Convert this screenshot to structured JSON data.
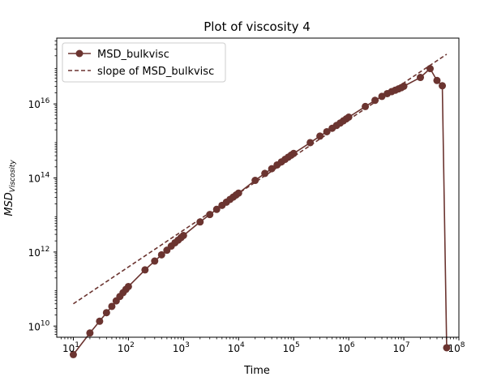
{
  "chart_data": {
    "type": "line",
    "title": "Plot of viscosity 4",
    "xlabel": "Time",
    "ylabel_main": "MSD",
    "ylabel_sub": "Viscosity",
    "xscale": "log",
    "yscale": "log",
    "xlim": [
      5,
      100000000
    ],
    "ylim": [
      5000000000,
      600000000000000000
    ],
    "grid": false,
    "legend_position": "top-left",
    "x_ticks": [
      {
        "value": 10,
        "base": "10",
        "exp": "1"
      },
      {
        "value": 100,
        "base": "10",
        "exp": "2"
      },
      {
        "value": 1000,
        "base": "10",
        "exp": "3"
      },
      {
        "value": 10000,
        "base": "10",
        "exp": "4"
      },
      {
        "value": 100000,
        "base": "10",
        "exp": "5"
      },
      {
        "value": 1000000,
        "base": "10",
        "exp": "6"
      },
      {
        "value": 10000000,
        "base": "10",
        "exp": "7"
      },
      {
        "value": 100000000,
        "base": "10",
        "exp": "8"
      }
    ],
    "y_ticks": [
      {
        "value": 10000000000,
        "base": "10",
        "exp": "10"
      },
      {
        "value": 1000000000000,
        "base": "10",
        "exp": "12"
      },
      {
        "value": 100000000000000,
        "base": "10",
        "exp": "14"
      },
      {
        "value": 10000000000000000,
        "base": "10",
        "exp": "16"
      }
    ],
    "series": [
      {
        "name": "MSD_bulkvisc",
        "style": "line-marker",
        "color": "#6b3430",
        "x": [
          10,
          20,
          30,
          40,
          50,
          60,
          70,
          80,
          90,
          100,
          200,
          300,
          400,
          500,
          600,
          700,
          800,
          900,
          1000,
          2000,
          3000,
          4000,
          5000,
          6000,
          7000,
          8000,
          9000,
          10000,
          20000,
          30000,
          40000,
          50000,
          60000,
          70000,
          80000,
          90000,
          100000,
          200000,
          300000,
          400000,
          500000,
          600000,
          700000,
          800000,
          900000,
          1000000,
          2000000,
          3000000,
          4000000,
          5000000,
          6000000,
          7000000,
          8000000,
          9000000,
          10000000,
          20000000,
          30000000,
          40000000,
          50000000,
          60000000
        ],
        "y": [
          1700000000.0,
          6500000000.0,
          13500000000.0,
          23000000000.0,
          34000000000.0,
          48000000000.0,
          63000000000.0,
          80000000000.0,
          98000000000.0,
          117000000000.0,
          330000000000.0,
          570000000000.0,
          840000000000.0,
          1120000000000.0,
          1450000000000.0,
          1780000000000.0,
          2100000000000.0,
          2450000000000.0,
          2800000000000.0,
          6500000000000.0,
          10300000000000.0,
          14200000000000.0,
          18200000000000.0,
          22200000000000.0,
          26400000000000.0,
          30500000000000.0,
          34700000000000.0,
          39000000000000.0,
          86000000000000.0,
          133000000000000.0,
          178000000000000.0,
          225000000000000.0,
          272000000000000.0,
          319000000000000.0,
          366000000000000.0,
          413000000000000.0,
          460000000000000.0,
          900000000000000.0,
          1350000000000000.0,
          1780000000000000.0,
          2200000000000000.0,
          2620000000000000.0,
          3050000000000000.0,
          3500000000000000.0,
          3950000000000000.0,
          4400000000000000.0,
          8500000000000000.0,
          1.25e+16,
          1.6e+16,
          1.9e+16,
          2.15e+16,
          2.35e+16,
          2.55e+16,
          2.75e+16,
          3e+16,
          5.2e+16,
          9e+16,
          4.3e+16,
          3.1e+16,
          2600000000.0
        ]
      },
      {
        "name": "slope of MSD_bulkvisc",
        "style": "dashed",
        "color": "#6b3430",
        "x": [
          10,
          60000000
        ],
        "y": [
          40000000000.0,
          2.2e+17
        ]
      }
    ]
  }
}
